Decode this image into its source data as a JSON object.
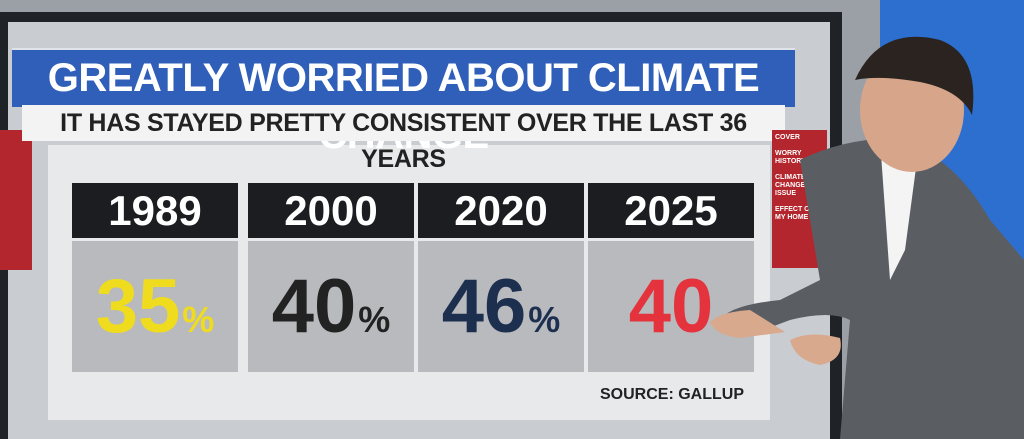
{
  "board": {
    "title": "GREATLY WORRIED ABOUT CLIMATE CHANGE",
    "subtitle": "IT HAS STAYED PRETTY CONSISTENT OVER THE LAST 36 YEARS",
    "panels": [
      {
        "year": "1989",
        "number": "35",
        "unit": "%",
        "color": "#f0dc1e"
      },
      {
        "year": "2000",
        "number": "40",
        "unit": "%",
        "color": "#222222"
      },
      {
        "year": "2020",
        "number": "46",
        "unit": "%",
        "color": "#1d2f4e"
      },
      {
        "year": "2025",
        "number": "40",
        "color": "#e4333d"
      }
    ],
    "source": "SOURCE: GALLUP",
    "side_menu": [
      "COVER",
      "WORRY HISTORY",
      "CLIMATE CHANGE TOP ISSUE",
      "EFFECT ON MY HOME"
    ]
  }
}
